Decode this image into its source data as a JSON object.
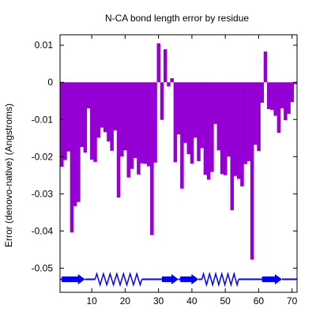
{
  "chart_data": {
    "type": "bar",
    "title": "N-CA bond length error by residue",
    "xlabel": "",
    "ylabel": "Error (denovo-native) (Angstroms)",
    "xlim": [
      0.5,
      71.5
    ],
    "ylim": [
      -0.0565,
      0.0128
    ],
    "x_ticks": [
      10,
      20,
      30,
      40,
      50,
      60,
      70
    ],
    "y_ticks": [
      0.01,
      0,
      -0.01,
      -0.02,
      -0.03,
      -0.04,
      -0.05
    ],
    "bar_color": "#9400d3",
    "x": [
      1,
      2,
      3,
      4,
      5,
      6,
      7,
      8,
      9,
      10,
      11,
      12,
      13,
      14,
      15,
      16,
      17,
      18,
      19,
      20,
      21,
      22,
      23,
      24,
      25,
      26,
      27,
      28,
      29,
      30,
      31,
      32,
      33,
      34,
      35,
      36,
      37,
      38,
      39,
      40,
      41,
      42,
      43,
      44,
      45,
      46,
      47,
      48,
      49,
      50,
      51,
      52,
      53,
      54,
      55,
      56,
      57,
      58,
      59,
      60,
      61,
      62,
      63,
      64,
      65,
      66,
      67,
      68,
      69,
      70,
      71
    ],
    "values": [
      -0.0227,
      -0.0209,
      -0.0186,
      -0.0404,
      -0.0333,
      -0.0322,
      -0.0174,
      -0.0189,
      -0.007,
      -0.0208,
      -0.0214,
      -0.0149,
      -0.0122,
      -0.0134,
      -0.0159,
      -0.0184,
      -0.0129,
      -0.031,
      -0.02,
      -0.0183,
      -0.0256,
      -0.0233,
      -0.0204,
      -0.0248,
      -0.0218,
      -0.0219,
      -0.0226,
      -0.0411,
      -0.0216,
      0.0105,
      -0.0101,
      0.0089,
      -0.0011,
      0.0011,
      -0.0215,
      -0.014,
      -0.0286,
      -0.0163,
      -0.0193,
      -0.0219,
      -0.0149,
      -0.0212,
      -0.0177,
      -0.0249,
      -0.0262,
      -0.0241,
      -0.0112,
      -0.0183,
      -0.0247,
      -0.025,
      -0.02,
      -0.0344,
      -0.0252,
      -0.026,
      -0.028,
      -0.022,
      -0.0212,
      -0.0477,
      -0.0168,
      -0.0185,
      -0.0055,
      0.0083,
      -0.0072,
      -0.0074,
      -0.009,
      -0.0136,
      -0.007,
      -0.0102,
      -0.0085,
      -0.0053,
      -0.0005
    ],
    "secondary_structure": {
      "color": "#0000ff",
      "y": -0.053,
      "segments": [
        {
          "type": "coil",
          "start": 0.5,
          "end": 1
        },
        {
          "type": "strand",
          "start": 1,
          "end": 8
        },
        {
          "type": "coil",
          "start": 8,
          "end": 11
        },
        {
          "type": "helix",
          "start": 11,
          "end": 25
        },
        {
          "type": "coil",
          "start": 25,
          "end": 31
        },
        {
          "type": "strand",
          "start": 31,
          "end": 36
        },
        {
          "type": "coil",
          "start": 36,
          "end": 36.5
        },
        {
          "type": "strand",
          "start": 36.5,
          "end": 42
        },
        {
          "type": "coil",
          "start": 42,
          "end": 43
        },
        {
          "type": "helix",
          "start": 43,
          "end": 54
        },
        {
          "type": "coil",
          "start": 54,
          "end": 61
        },
        {
          "type": "strand",
          "start": 61,
          "end": 67
        },
        {
          "type": "coil",
          "start": 67,
          "end": 71.5
        }
      ]
    }
  }
}
